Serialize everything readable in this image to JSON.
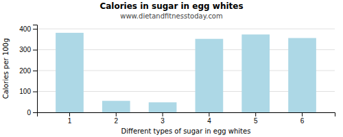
{
  "chart_data": {
    "type": "bar",
    "title": "Calories in sugar in egg whites",
    "subtitle": "www.dietandfitnesstoday.com",
    "xlabel": "Different types of sugar in egg whites",
    "ylabel": "Calories per 100g",
    "categories": [
      1,
      2,
      3,
      4,
      5,
      6
    ],
    "values": [
      381,
      55,
      48,
      352,
      373,
      356
    ],
    "color": "#add8e6",
    "ylim": [
      0,
      420
    ],
    "yticks": [
      0,
      100,
      200,
      300,
      400
    ],
    "grid": true
  }
}
